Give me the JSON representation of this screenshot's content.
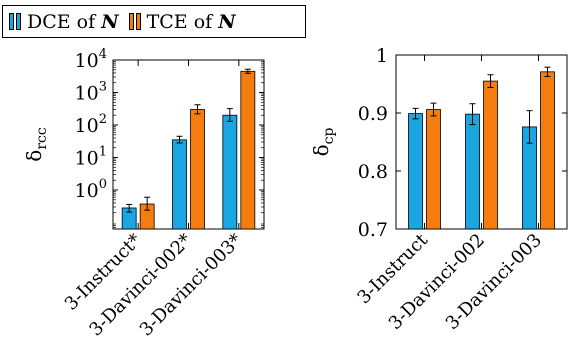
{
  "legend": {
    "entries": [
      {
        "label": "DCE of ",
        "symbol": "N",
        "color": "#1aa6e0"
      },
      {
        "label": "TCE of ",
        "symbol": "N",
        "color": "#f57d0f"
      }
    ]
  },
  "chart_data": [
    {
      "type": "bar",
      "scale": "log",
      "ylabel": "δ_rcc",
      "ylim_log10": [
        -1.2,
        4
      ],
      "yticks": [
        {
          "log10": 0,
          "label_base": "10",
          "label_exp": "0"
        },
        {
          "log10": 1,
          "label_base": "10",
          "label_exp": "1"
        },
        {
          "log10": 2,
          "label_base": "10",
          "label_exp": "2"
        },
        {
          "log10": 3,
          "label_base": "10",
          "label_exp": "3"
        },
        {
          "log10": 4,
          "label_base": "10",
          "label_exp": "4"
        }
      ],
      "categories": [
        "3-Instruct*",
        "3-Davinci-002*",
        "3-Davinci-003*"
      ],
      "series": [
        {
          "name": "DCE of N",
          "color": "#1aa6e0",
          "values": [
            0.28,
            35,
            200
          ],
          "err_low": [
            0.21,
            28,
            130
          ],
          "err_high": [
            0.36,
            45,
            320
          ]
        },
        {
          "name": "TCE of N",
          "color": "#f57d0f",
          "values": [
            0.37,
            300,
            4500
          ],
          "err_low": [
            0.24,
            220,
            3900
          ],
          "err_high": [
            0.6,
            420,
            5200
          ]
        }
      ]
    },
    {
      "type": "bar",
      "scale": "linear",
      "ylabel": "δ_cp",
      "ylim": [
        0.7,
        1.0
      ],
      "yticks": [
        {
          "value": 0.7,
          "label": "0.7"
        },
        {
          "value": 0.8,
          "label": "0.8"
        },
        {
          "value": 0.9,
          "label": "0.9"
        },
        {
          "value": 1.0,
          "label": "1"
        }
      ],
      "categories": [
        "3-Instruct",
        "3-Davinci-002",
        "3-Davinci-003"
      ],
      "series": [
        {
          "name": "DCE of N",
          "color": "#1aa6e0",
          "values": [
            0.899,
            0.898,
            0.876
          ],
          "err": [
            0.009,
            0.018,
            0.028
          ]
        },
        {
          "name": "TCE of N",
          "color": "#f57d0f",
          "values": [
            0.906,
            0.955,
            0.971
          ],
          "err": [
            0.011,
            0.011,
            0.008
          ]
        }
      ]
    }
  ]
}
